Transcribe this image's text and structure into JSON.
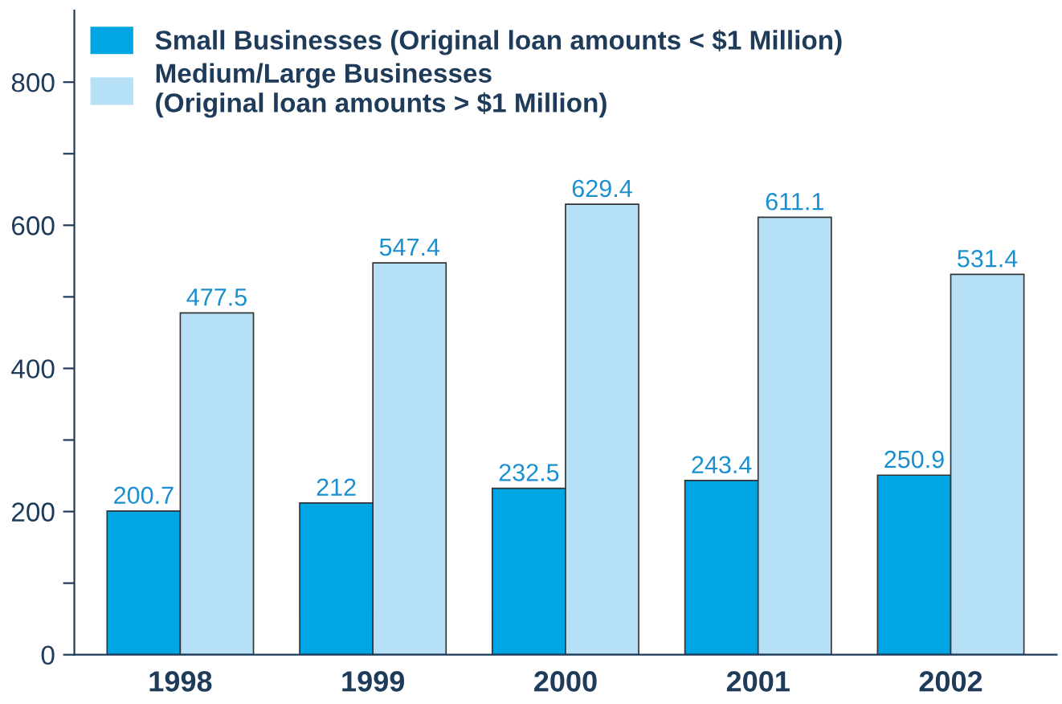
{
  "chart_data": {
    "type": "bar",
    "categories": [
      "1998",
      "1999",
      "2000",
      "2001",
      "2002"
    ],
    "series": [
      {
        "name": "Small Businesses (Original loan amounts < $1 Million)",
        "color": "#00a6e4",
        "values": [
          200.7,
          212,
          232.5,
          243.4,
          250.9
        ]
      },
      {
        "name": "Medium/Large Businesses\n(Original loan amounts > $1 Million)",
        "color": "#b5e0f6",
        "values": [
          477.5,
          547.4,
          629.4,
          611.1,
          531.4
        ]
      }
    ],
    "ylim": [
      0,
      900
    ],
    "yticks": [
      0,
      {
        "value": 100,
        "label": null
      },
      200,
      {
        "value": 300,
        "label": null
      },
      400,
      {
        "value": 500,
        "label": null
      },
      600,
      {
        "value": 700,
        "label": null
      },
      800
    ],
    "data_labels": true,
    "legend": "top left",
    "grid": false
  }
}
